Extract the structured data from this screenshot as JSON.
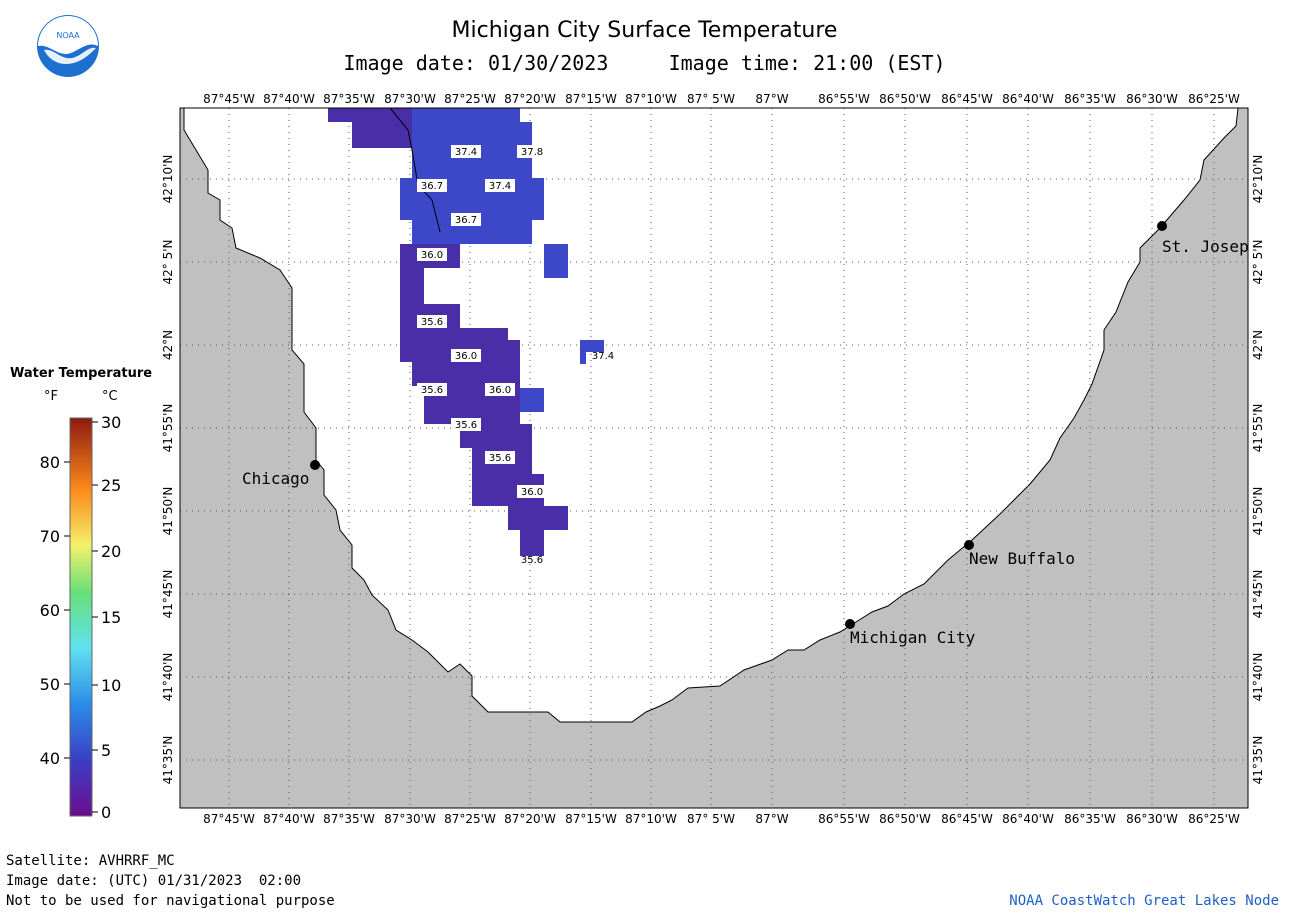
{
  "header": {
    "title": "Michigan City Surface Temperature",
    "date_label": "Image date:",
    "date": "01/30/2023",
    "time_label": "Image time:",
    "time": "21:00 (EST)"
  },
  "logo": {
    "text": "NOAA",
    "colors": {
      "top": "#ffffff",
      "ring": "#1d6fd0",
      "bird": "#ffffff"
    }
  },
  "map": {
    "lon_labels": [
      "87°45'W",
      "87°40'W",
      "87°35'W",
      "87°30'W",
      "87°25'W",
      "87°20'W",
      "87°15'W",
      "87°10'W",
      "87° 5'W",
      "87°W",
      "86°55'W",
      "86°50'W",
      "86°45'W",
      "86°40'W",
      "86°35'W",
      "86°30'W",
      "86°25'W"
    ],
    "lat_labels": [
      "42°10'N",
      "42° 5'N",
      "42°N",
      "41°55'N",
      "41°50'N",
      "41°45'N",
      "41°40'N",
      "41°35'N"
    ],
    "cities": [
      {
        "name": "Chicago"
      },
      {
        "name": "St. Josep"
      },
      {
        "name": "New Buffalo"
      },
      {
        "name": "Michigan City"
      }
    ],
    "temperature_labels": [
      "37.4",
      "37.8",
      "36.7",
      "37.4",
      "36.7",
      "36.0",
      "35.6",
      "37.4",
      "36.0",
      "35.6",
      "36.0",
      "35.6",
      "35.6",
      "36.0",
      "35.6"
    ],
    "colors": {
      "land": "#c0c0c0",
      "water": "#ffffff",
      "grid": "#555555",
      "cold": "#4a2ea8",
      "cool": "#3c48c8"
    }
  },
  "legend": {
    "title": "Water Temperature",
    "unit_f": "°F",
    "unit_c": "°C",
    "f_ticks": [
      "80",
      "70",
      "60",
      "50",
      "40"
    ],
    "c_ticks": [
      "30",
      "25",
      "20",
      "15",
      "10",
      "5",
      "0"
    ],
    "range_c": [
      0,
      30
    ]
  },
  "footer": {
    "satellite": "Satellite: AVHRRF_MC",
    "utc_date": "Image date: (UTC) 01/31/2023  02:00",
    "disclaimer": "Not to be used for navigational purpose",
    "credit": "NOAA CoastWatch Great Lakes Node"
  }
}
